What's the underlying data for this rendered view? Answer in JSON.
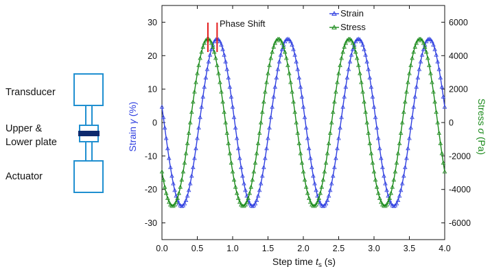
{
  "schematic": {
    "transducer_label": "Transducer",
    "plate_label_line1": "Upper &",
    "plate_label_line2": "Lower plate",
    "actuator_label": "Actuator",
    "box_color": "#1f8fd0",
    "plate_color": "#0d2a6e"
  },
  "chart_data": {
    "type": "line",
    "xlabel_text": "Step time",
    "xlabel_sym": "t",
    "xlabel_sub": "s",
    "xlabel_unit": "(s)",
    "ylabel_left_text": "Strain",
    "ylabel_left_sym": "γ",
    "ylabel_left_unit": "(%)",
    "ylabel_right_text": "Stress",
    "ylabel_right_sym": "σ",
    "ylabel_right_unit": "(Pa)",
    "xlim": [
      0,
      4.0
    ],
    "ylim_left": [
      -35,
      35
    ],
    "ylim_right": [
      -7000,
      7000
    ],
    "x_ticks": [
      "0.0",
      "0.5",
      "1.0",
      "1.5",
      "2.0",
      "2.5",
      "3.0",
      "3.5",
      "4.0"
    ],
    "y_left_ticks": [
      "30",
      "20",
      "10",
      "0",
      "-10",
      "-20",
      "-30"
    ],
    "y_right_ticks": [
      "6000",
      "4000",
      "2000",
      "0",
      "-2000",
      "-4000",
      "-6000"
    ],
    "annotation": "Phase Shift",
    "annotation_color": "#e31a1a",
    "annotation_x": [
      0.65,
      0.78
    ],
    "grid": false,
    "legend_position": "top-right",
    "series": [
      {
        "name": "Strain",
        "axis": "left",
        "color": "#2f3fe0",
        "amplitude": 25,
        "frequency": 1,
        "phase_peak": 0.78,
        "offset": 0,
        "marker": "triangle"
      },
      {
        "name": "Stress",
        "axis": "right",
        "color": "#1a8a1a",
        "amplitude": 5000,
        "frequency": 1,
        "phase_peak": 0.65,
        "offset": 0,
        "marker": "triangle"
      }
    ]
  }
}
